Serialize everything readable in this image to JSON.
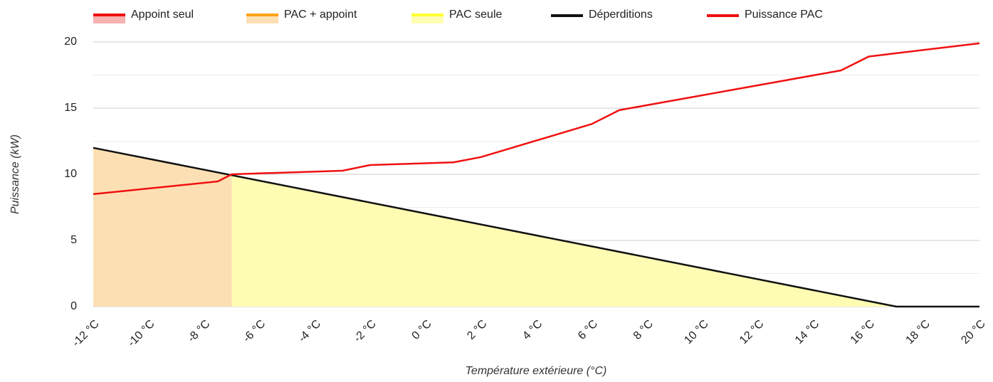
{
  "chart_data": {
    "type": "line",
    "xlabel": "Température extérieure (°C)",
    "ylabel": "Puissance (kW)",
    "xlim": [
      -12,
      20
    ],
    "ylim": [
      0,
      20
    ],
    "xticks": [
      {
        "value": -12,
        "label": "-12 °C"
      },
      {
        "value": -10,
        "label": "-10 °C"
      },
      {
        "value": -8,
        "label": "-8 °C"
      },
      {
        "value": -6,
        "label": "-6 °C"
      },
      {
        "value": -4,
        "label": "-4 °C"
      },
      {
        "value": -2,
        "label": "-2 °C"
      },
      {
        "value": 0,
        "label": "0 °C"
      },
      {
        "value": 2,
        "label": "2 °C"
      },
      {
        "value": 4,
        "label": "4 °C"
      },
      {
        "value": 6,
        "label": "6 °C"
      },
      {
        "value": 8,
        "label": "8 °C"
      },
      {
        "value": 10,
        "label": "10 °C"
      },
      {
        "value": 12,
        "label": "12 °C"
      },
      {
        "value": 14,
        "label": "14 °C"
      },
      {
        "value": 16,
        "label": "16 °C"
      },
      {
        "value": 18,
        "label": "18 °C"
      },
      {
        "value": 20,
        "label": "20 °C"
      }
    ],
    "yticks": [
      0,
      5,
      10,
      15,
      20
    ],
    "grid": true,
    "minor_grid": true,
    "legend": "top",
    "series": [
      {
        "name": "Appoint seul",
        "kind": "area",
        "color": "#f01010",
        "fill_color": "#f6b1b1",
        "x": [],
        "values": []
      },
      {
        "name": "PAC + appoint",
        "kind": "area",
        "color": "#ffa21a",
        "fill_color": "#fce0b3",
        "x": [
          -12,
          -7
        ],
        "values": [
          12,
          9.93
        ]
      },
      {
        "name": "PAC seule",
        "kind": "area",
        "color": "#ffff33",
        "fill_color": "#fefcb3",
        "x": [
          -7,
          17
        ],
        "values": [
          9.93,
          0
        ]
      },
      {
        "name": "Déperditions",
        "kind": "line",
        "color": "#111111",
        "x": [
          -12,
          17,
          20
        ],
        "values": [
          12,
          0,
          0
        ]
      },
      {
        "name": "Puissance PAC",
        "kind": "line",
        "color": "#f01010",
        "x": [
          -12,
          -7.5,
          -7,
          -3,
          -2,
          1,
          2,
          6,
          7,
          15,
          16,
          20
        ],
        "values": [
          8.5,
          9.46,
          10.0,
          10.27,
          10.7,
          10.9,
          11.3,
          13.8,
          14.85,
          17.85,
          18.9,
          19.9
        ]
      }
    ]
  }
}
